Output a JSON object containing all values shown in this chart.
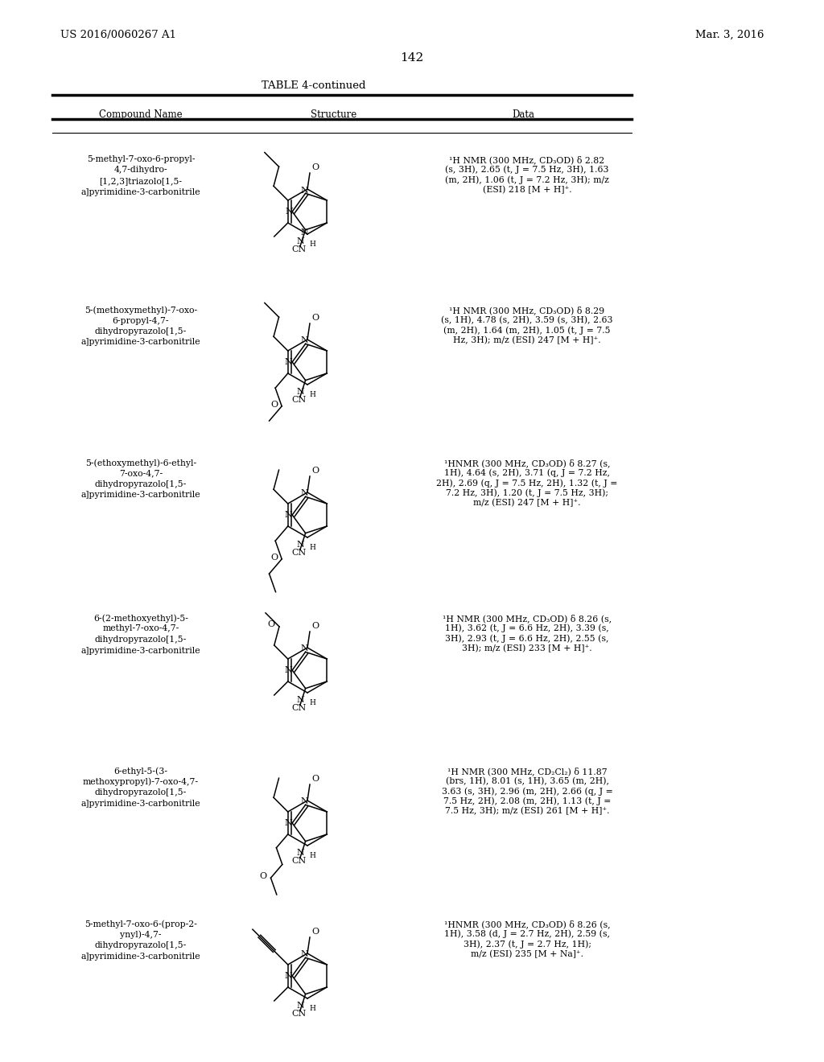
{
  "page_number": "142",
  "patent_left": "US 2016/0060267 A1",
  "patent_right": "Mar. 3, 2016",
  "table_title": "TABLE 4-continued",
  "col_headers": [
    "Compound Name",
    "Structure",
    "Data"
  ],
  "background_color": "#ffffff",
  "text_color": "#000000",
  "rows": [
    {
      "name": "5-methyl-7-oxo-6-propyl-\n4,7-dihydro-\n[1,2,3]triazolo[1,5-\na]pyrimidine-3-carbonitrile",
      "data": "¹H NMR (300 MHz, CD₃OD) δ 2.82\n(s, 3H), 2.65 (t, J = 7.5 Hz, 3H), 1.63\n(m, 2H), 1.06 (t, J = 7.2 Hz, 3H); m/z\n(ESI) 218 [M + H]⁺.",
      "ring_type": "triazolo",
      "chain_top": "propyl",
      "chain_bot": "methyl",
      "chain_top_side": "left"
    },
    {
      "name": "5-(methoxymethyl)-7-oxo-\n6-propyl-4,7-\ndihydropyrazolo[1,5-\na]pyrimidine-3-carbonitrile",
      "data": "¹H NMR (300 MHz, CD₃OD) δ 8.29\n(s, 1H), 4.78 (s, 2H), 3.59 (s, 3H), 2.63\n(m, 2H), 1.64 (m, 2H), 1.05 (t, J = 7.5\nHz, 3H); m/z (ESI) 247 [M + H]⁺.",
      "ring_type": "pyrazolo",
      "chain_top": "propyl",
      "chain_bot": "methoxymethyl",
      "chain_top_side": "left"
    },
    {
      "name": "5-(ethoxymethyl)-6-ethyl-\n7-oxo-4,7-\ndihydropyrazolo[1,5-\na]pyrimidine-3-carbonitrile",
      "data": "¹HNMR (300 MHz, CD₃OD) δ 8.27 (s,\n1H), 4.64 (s, 2H), 3.71 (q, J = 7.2 Hz,\n2H), 2.69 (q, J = 7.5 Hz, 2H), 1.32 (t, J =\n7.2 Hz, 3H), 1.20 (t, J = 7.5 Hz, 3H);\nm/z (ESI) 247 [M + H]⁺.",
      "ring_type": "pyrazolo",
      "chain_top": "ethyl",
      "chain_bot": "ethoxymethyl",
      "chain_top_side": "left"
    },
    {
      "name": "6-(2-methoxyethyl)-5-\nmethyl-7-oxo-4,7-\ndihydropyrazolo[1,5-\na]pyrimidine-3-carbonitrile",
      "data": "¹H NMR (300 MHz, CD₃OD) δ 8.26 (s,\n1H), 3.62 (t, J = 6.6 Hz, 2H), 3.39 (s,\n3H), 2.93 (t, J = 6.6 Hz, 2H), 2.55 (s,\n3H); m/z (ESI) 233 [M + H]⁺.",
      "ring_type": "pyrazolo",
      "chain_top": "methoxyethyl",
      "chain_bot": "methyl",
      "chain_top_side": "left"
    },
    {
      "name": "6-ethyl-5-(3-\nmethoxypropyl)-7-oxo-4,7-\ndihydropyrazolo[1,5-\na]pyrimidine-3-carbonitrile",
      "data": "¹H NMR (300 MHz, CD₂Cl₂) δ 11.87\n(brs, 1H), 8.01 (s, 1H), 3.65 (m, 2H),\n3.63 (s, 3H), 2.96 (m, 2H), 2.66 (q, J =\n7.5 Hz, 2H), 2.08 (m, 2H), 1.13 (t, J =\n7.5 Hz, 3H); m/z (ESI) 261 [M + H]⁺.",
      "ring_type": "pyrazolo",
      "chain_top": "ethyl",
      "chain_bot": "methoxypropyl",
      "chain_top_side": "left"
    },
    {
      "name": "5-methyl-7-oxo-6-(prop-2-\nynyl)-4,7-\ndihydropyrazolo[1,5-\na]pyrimidine-3-carbonitrile",
      "data": "¹HNMR (300 MHz, CD₃OD) δ 8.26 (s,\n1H), 3.58 (d, J = 2.7 Hz, 2H), 2.59 (s,\n3H), 2.37 (t, J = 2.7 Hz, 1H);\nm/z (ESI) 235 [M + Na]⁺.",
      "ring_type": "pyrazolo",
      "chain_top": "propargyl",
      "chain_bot": "methyl",
      "chain_top_side": "left"
    }
  ]
}
